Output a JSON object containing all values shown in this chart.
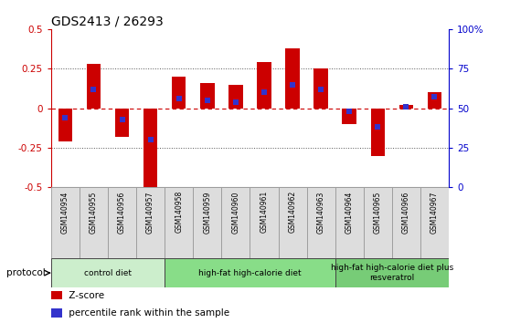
{
  "title": "GDS2413 / 26293",
  "samples": [
    "GSM140954",
    "GSM140955",
    "GSM140956",
    "GSM140957",
    "GSM140958",
    "GSM140959",
    "GSM140960",
    "GSM140961",
    "GSM140962",
    "GSM140963",
    "GSM140964",
    "GSM140965",
    "GSM140966",
    "GSM140967"
  ],
  "zscore": [
    -0.21,
    0.28,
    -0.18,
    -0.53,
    0.2,
    0.16,
    0.15,
    0.29,
    0.38,
    0.25,
    -0.1,
    -0.3,
    0.02,
    0.1
  ],
  "percentile": [
    44,
    62,
    43,
    30,
    56,
    55,
    54,
    60,
    65,
    62,
    48,
    38,
    51,
    57
  ],
  "bar_color": "#cc0000",
  "dot_color": "#3333cc",
  "ylim_left": [
    -0.5,
    0.5
  ],
  "yticks_left": [
    -0.5,
    -0.25,
    0,
    0.25,
    0.5
  ],
  "ytick_labels_left": [
    "-0.5",
    "-0.25",
    "0",
    "0.25",
    "0.5"
  ],
  "ytick_labels_right": [
    "0",
    "25",
    "50",
    "75",
    "100%"
  ],
  "hline_color": "#cc0000",
  "dotted_color": "#555555",
  "groups": [
    {
      "label": "control diet",
      "start": 0,
      "end": 4,
      "color": "#cceecc"
    },
    {
      "label": "high-fat high-calorie diet",
      "start": 4,
      "end": 10,
      "color": "#88dd88"
    },
    {
      "label": "high-fat high-calorie diet plus\nresveratrol",
      "start": 10,
      "end": 14,
      "color": "#77cc77"
    }
  ],
  "protocol_label": "protocol",
  "legend_items": [
    {
      "label": " Z-score",
      "color": "#cc0000",
      "marker": "s"
    },
    {
      "label": " percentile rank within the sample",
      "color": "#3333cc",
      "marker": "s"
    }
  ],
  "bar_width": 0.5,
  "dot_size": 5,
  "sample_box_color": "#dddddd",
  "sample_box_edge": "#999999"
}
